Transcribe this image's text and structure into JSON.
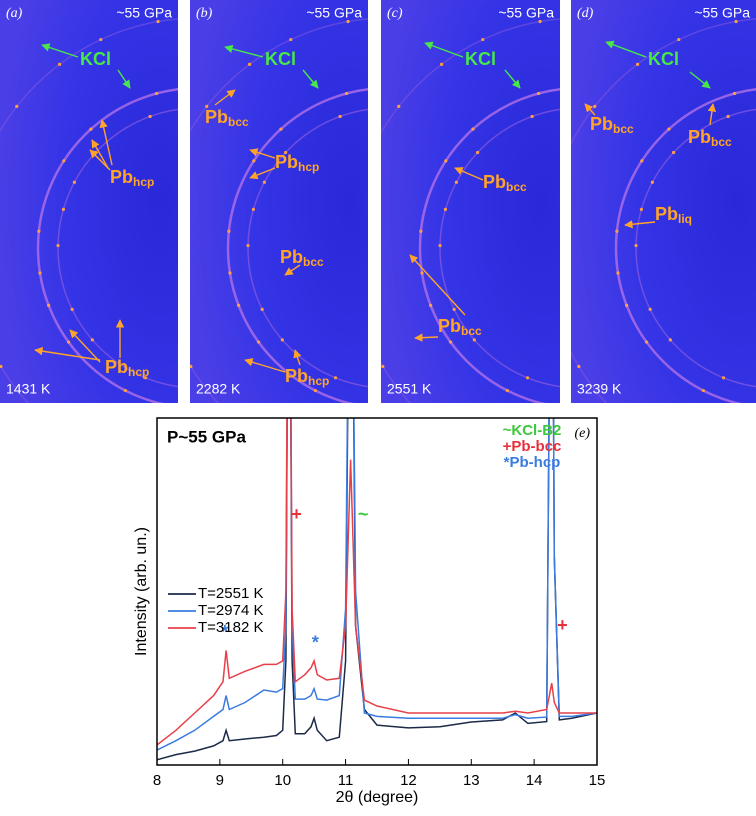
{
  "panels": [
    {
      "letter": "(a)",
      "pressure": "~55 GPa",
      "temperature": "1431 K",
      "labels": [
        {
          "text": "KCl"
        },
        {
          "text": "Pb",
          "sub": "hcp"
        },
        {
          "text": "Pb",
          "sub": "hcp"
        }
      ]
    },
    {
      "letter": "(b)",
      "pressure": "~55 GPa",
      "temperature": "2282 K",
      "labels": [
        {
          "text": "KCl"
        },
        {
          "text": "Pb",
          "sub": "bcc"
        },
        {
          "text": "Pb",
          "sub": "hcp"
        },
        {
          "text": "Pb",
          "sub": "bcc"
        },
        {
          "text": "Pb",
          "sub": "hcp"
        }
      ]
    },
    {
      "letter": "(c)",
      "pressure": "~55 GPa",
      "temperature": "2551 K",
      "labels": [
        {
          "text": "KCl"
        },
        {
          "text": "Pb",
          "sub": "bcc"
        },
        {
          "text": "Pb",
          "sub": "bcc"
        }
      ]
    },
    {
      "letter": "(d)",
      "pressure": "~55 GPa",
      "temperature": "3239 K",
      "labels": [
        {
          "text": "KCl"
        },
        {
          "text": "Pb",
          "sub": "bcc"
        },
        {
          "text": "Pb",
          "sub": "bcc"
        },
        {
          "text": "Pb",
          "sub": "liq"
        }
      ]
    }
  ],
  "chart_data": {
    "type": "line",
    "panel_label": "(e)",
    "annotation": "P~55 GPa",
    "x_label": "2θ (degree)",
    "y_label": "Intensity (arb. un.)",
    "phase_legend": [
      {
        "text": "~KCl-B2",
        "color": "#3cc83c"
      },
      {
        "text": "+Pb-bcc",
        "color": "#e8303a"
      },
      {
        "text": "*Pb-hcp",
        "color": "#3a7be0"
      }
    ],
    "peak_markers": [
      {
        "text": "+",
        "x": 10.22,
        "y": 72,
        "color": "#e8303a"
      },
      {
        "text": "~",
        "x": 11.28,
        "y": 72,
        "color": "#3cc83c"
      },
      {
        "text": "*",
        "x": 9.08,
        "y": 38,
        "color": "#3a7be0"
      },
      {
        "text": "*",
        "x": 10.52,
        "y": 35,
        "color": "#3a7be0"
      },
      {
        "text": "+",
        "x": 14.45,
        "y": 40,
        "color": "#e8303a"
      }
    ],
    "x": [
      8,
      8.3,
      8.6,
      8.9,
      9.05,
      9.1,
      9.15,
      9.4,
      9.7,
      9.9,
      10.0,
      10.05,
      10.1,
      10.15,
      10.2,
      10.35,
      10.45,
      10.5,
      10.55,
      10.7,
      10.9,
      11.0,
      11.08,
      11.16,
      11.3,
      11.5,
      12,
      12.5,
      13,
      13.5,
      13.7,
      13.9,
      14.2,
      14.28,
      14.32,
      14.4,
      14.6,
      15
    ],
    "series": [
      {
        "name": "T=2551 K",
        "color": "#1c2a48",
        "values": [
          1.5,
          3,
          4,
          5.5,
          7,
          10,
          7,
          7.5,
          8,
          8.5,
          10,
          30,
          200,
          30,
          9,
          9,
          11,
          13.5,
          10,
          7,
          8,
          30,
          200,
          40,
          16,
          11.5,
          10.7,
          11,
          12.4,
          13,
          15,
          12,
          12.5,
          200,
          60,
          13,
          13.5,
          15
        ]
      },
      {
        "name": "T=2974 K",
        "color": "#3a7be0",
        "values": [
          4.3,
          7,
          10,
          14,
          16,
          20,
          16,
          18,
          21.6,
          21,
          22,
          40,
          200,
          40,
          19,
          19,
          20,
          22,
          19,
          18.7,
          20,
          45,
          200,
          50,
          15,
          14,
          13.5,
          13.5,
          13.5,
          13.5,
          14.5,
          13.5,
          13.8,
          200,
          60,
          14,
          14,
          15
        ]
      },
      {
        "name": "T=3182 K",
        "color": "#e8404a",
        "values": [
          5.8,
          10,
          15,
          20,
          24,
          33,
          25,
          27,
          29,
          29,
          30,
          50,
          200,
          45,
          24,
          26,
          28,
          30,
          26,
          24.5,
          25,
          40,
          88,
          40,
          18.7,
          17,
          15,
          15,
          15,
          15,
          15.5,
          15,
          16,
          23.6,
          18,
          15,
          15,
          15
        ]
      }
    ],
    "xlim": [
      8,
      15
    ],
    "ylim": [
      0,
      100
    ],
    "xticks": [
      8,
      9,
      10,
      11,
      12,
      13,
      14,
      15
    ]
  }
}
